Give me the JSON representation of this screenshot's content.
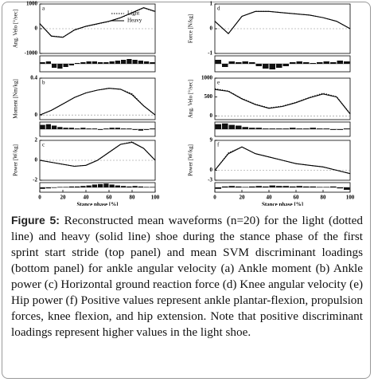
{
  "chart_data": [
    {
      "type": "line",
      "label": "a",
      "ylabel": "Ang. Velo [°/sec]",
      "x": [
        0,
        10,
        20,
        30,
        40,
        50,
        60,
        70,
        80,
        90,
        100
      ],
      "xlim": [
        0,
        100
      ],
      "ylim": [
        -1000,
        1000
      ],
      "yticks": [
        -1000,
        0,
        1000
      ],
      "legend": "upper right",
      "series": [
        {
          "name": "Light",
          "color": "#000000",
          "style": "dotted",
          "values": [
            210,
            -290,
            -340,
            -60,
            90,
            190,
            290,
            440,
            640,
            840,
            690
          ]
        },
        {
          "name": "Heavy",
          "color": "#000000",
          "style": "solid",
          "values": [
            200,
            -300,
            -350,
            -50,
            100,
            200,
            300,
            450,
            650,
            850,
            700
          ]
        }
      ],
      "loadings": [
        0.2,
        0.3,
        -0.5,
        -0.6,
        -0.4,
        -0.2,
        0.1,
        0.2,
        0.3,
        0.3,
        0.2,
        0.2,
        0.3,
        0.4,
        0.5,
        0.6,
        0.5,
        0.4,
        0.3,
        0.2
      ]
    },
    {
      "type": "line",
      "label": "b",
      "ylabel": "Moment [Nm/kg]",
      "x": [
        0,
        10,
        20,
        30,
        40,
        50,
        60,
        70,
        80,
        90,
        100
      ],
      "xlim": [
        0,
        100
      ],
      "ylim": [
        -0.05,
        0.4
      ],
      "yticks": [
        0,
        0.4
      ],
      "series": [
        {
          "color": "#000000",
          "style": "dotted",
          "values": [
            0,
            0.05,
            0.12,
            0.19,
            0.24,
            0.27,
            0.29,
            0.28,
            0.23,
            0.1,
            0
          ]
        },
        {
          "color": "#000000",
          "style": "solid",
          "values": [
            0,
            0.05,
            0.12,
            0.19,
            0.24,
            0.27,
            0.29,
            0.28,
            0.22,
            0.1,
            0
          ]
        }
      ],
      "loadings": [
        0.6,
        0.7,
        0.5,
        0.3,
        0.2,
        0.2,
        0.1,
        0.2,
        0.1,
        0.1,
        -0.1,
        0.1,
        0.2,
        0.2,
        0.1,
        0.1,
        -0.1,
        -0.2,
        -0.1,
        0.1
      ]
    },
    {
      "type": "line",
      "label": "c",
      "ylabel": "Power [W/kg]",
      "x": [
        0,
        10,
        20,
        30,
        40,
        50,
        60,
        70,
        80,
        90,
        100
      ],
      "xlim": [
        0,
        100
      ],
      "ylim": [
        -2,
        2
      ],
      "yticks": [
        -2,
        0,
        2
      ],
      "xticks": [
        0,
        20,
        40,
        60,
        80,
        100
      ],
      "xlabel": "Stance phase [%]",
      "series": [
        {
          "color": "#000000",
          "style": "dotted",
          "values": [
            0,
            -0.2,
            -0.4,
            -0.6,
            -0.5,
            0,
            0.8,
            1.6,
            1.85,
            1.2,
            0
          ]
        },
        {
          "color": "#000000",
          "style": "solid",
          "values": [
            0,
            -0.2,
            -0.4,
            -0.6,
            -0.5,
            0,
            0.8,
            1.6,
            1.8,
            1.2,
            0
          ]
        }
      ],
      "loadings": [
        -0.3,
        -0.2,
        -0.1,
        0.1,
        0.1,
        0.2,
        0.2,
        0.3,
        0.4,
        0.6,
        0.7,
        0.8,
        0.6,
        0.4,
        0.3,
        0.2,
        0.3,
        0.2,
        0.1,
        0.1
      ]
    },
    {
      "type": "line",
      "label": "d",
      "ylabel": "Force [N/kg]",
      "x": [
        0,
        10,
        20,
        30,
        40,
        50,
        60,
        70,
        80,
        90,
        100
      ],
      "xlim": [
        0,
        100
      ],
      "ylim": [
        -1,
        1
      ],
      "yticks": [
        -1,
        0,
        1
      ],
      "series": [
        {
          "color": "#000000",
          "style": "dotted",
          "values": [
            0.3,
            -0.2,
            0.5,
            0.7,
            0.7,
            0.65,
            0.6,
            0.55,
            0.45,
            0.3,
            0
          ]
        },
        {
          "color": "#000000",
          "style": "solid",
          "values": [
            0.3,
            -0.2,
            0.5,
            0.7,
            0.7,
            0.65,
            0.6,
            0.55,
            0.45,
            0.3,
            0
          ]
        }
      ],
      "loadings": [
        0.5,
        -0.4,
        0.3,
        0.2,
        0.3,
        0.2,
        -0.3,
        -0.6,
        -0.7,
        -0.5,
        -0.3,
        0.2,
        0.3,
        0.2,
        0.1,
        0.2,
        0.3,
        0.2,
        0.4,
        0.3
      ]
    },
    {
      "type": "line",
      "label": "e",
      "ylabel": "Ang. Velo [°/sec]",
      "x": [
        0,
        10,
        20,
        30,
        40,
        50,
        60,
        70,
        80,
        90,
        100
      ],
      "xlim": [
        0,
        100
      ],
      "ylim": [
        -100,
        1000
      ],
      "yticks": [
        0,
        500,
        1000
      ],
      "series": [
        {
          "color": "#000000",
          "style": "dotted",
          "values": [
            720,
            660,
            460,
            310,
            210,
            260,
            360,
            490,
            600,
            510,
            60
          ]
        },
        {
          "color": "#000000",
          "style": "solid",
          "values": [
            700,
            650,
            450,
            300,
            200,
            250,
            350,
            480,
            580,
            500,
            50
          ]
        }
      ],
      "loadings": [
        0.7,
        0.8,
        0.6,
        0.5,
        0.3,
        0.2,
        0.2,
        0.1,
        0.1,
        0.1,
        0.1,
        0.2,
        0.1,
        0.1,
        0.2,
        0.1,
        0.1,
        -0.1,
        -0.1,
        0.1
      ]
    },
    {
      "type": "line",
      "label": "f",
      "ylabel": "Power [W/kg]",
      "x": [
        0,
        10,
        20,
        30,
        40,
        50,
        60,
        70,
        80,
        90,
        100
      ],
      "xlim": [
        0,
        100
      ],
      "ylim": [
        -3,
        9
      ],
      "yticks": [
        -3,
        0,
        9
      ],
      "xticks": [
        0,
        20,
        40,
        60,
        80,
        100
      ],
      "xlabel": "Stance phase [%]",
      "series": [
        {
          "color": "#000000",
          "style": "dotted",
          "values": [
            0,
            5.2,
            7,
            5,
            4,
            3,
            2,
            1.5,
            1,
            0,
            -1
          ]
        },
        {
          "color": "#000000",
          "style": "solid",
          "values": [
            0,
            5,
            7,
            5,
            4,
            3,
            2,
            1.5,
            1,
            0,
            -1
          ]
        }
      ],
      "loadings": [
        -0.3,
        0.2,
        0.3,
        0.2,
        0.1,
        0.2,
        0.3,
        0.2,
        0.4,
        0.3,
        0.3,
        0.2,
        0.3,
        0.2,
        0.2,
        0.1,
        0.1,
        0.2,
        -0.2,
        -0.5
      ]
    }
  ],
  "caption": {
    "label": "Figure 5:",
    "text": "Reconstructed mean waveforms (n=20) for the light (dotted line) and heavy (solid line) shoe during the stance phase of the first sprint start stride (top panel) and mean SVM discriminant loadings (bottom panel) for ankle angular velocity (a) Ankle moment (b) Ankle power (c) Horizontal ground reaction force (d) Knee angular velocity (e) Hip power (f) Positive values represent ankle plantar-flexion, propulsion forces, knee flexion, and hip extension. Note that positive discriminant loadings represent higher values in the light shoe."
  }
}
